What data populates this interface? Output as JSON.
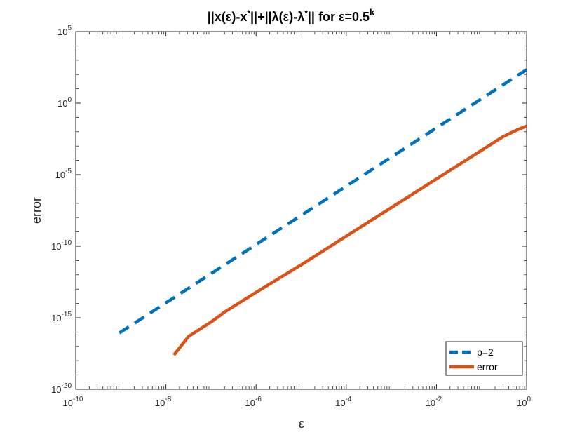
{
  "chart_data": {
    "type": "line",
    "title": "||x(ε)-x*||+||λ(ε)-λ*|| for ε=0.5^k",
    "title_parts": {
      "part1": "||x(ε)-x",
      "sup1": "*",
      "part2": "||+||λ(ε)-λ",
      "sup2": "*",
      "part3": "|| for ε=0.5",
      "sup3": "k"
    },
    "xlabel": "ε",
    "ylabel": "error",
    "x_scale": "log",
    "y_scale": "log",
    "xlim": [
      1e-10,
      1
    ],
    "ylim": [
      1e-20,
      100000.0
    ],
    "x_ticks": [
      {
        "base": "10",
        "exp": "-10",
        "value": 1e-10
      },
      {
        "base": "10",
        "exp": "-8",
        "value": 1e-08
      },
      {
        "base": "10",
        "exp": "-6",
        "value": 1e-06
      },
      {
        "base": "10",
        "exp": "-4",
        "value": 0.0001
      },
      {
        "base": "10",
        "exp": "-2",
        "value": 0.01
      },
      {
        "base": "10",
        "exp": "0",
        "value": 1
      }
    ],
    "y_ticks": [
      {
        "base": "10",
        "exp": "-20",
        "value": 1e-20
      },
      {
        "base": "10",
        "exp": "-15",
        "value": 1e-15
      },
      {
        "base": "10",
        "exp": "-10",
        "value": 1e-10
      },
      {
        "base": "10",
        "exp": "-5",
        "value": 1e-05
      },
      {
        "base": "10",
        "exp": "0",
        "value": 1
      },
      {
        "base": "10",
        "exp": "5",
        "value": 100000.0
      }
    ],
    "legend_position": "bottom-right",
    "series": [
      {
        "name": "p=2",
        "color": "#0072BD",
        "style": "dashed",
        "x": [
          9.3e-10,
          1
        ],
        "y": [
          8.7e-17,
          220.0
        ]
      },
      {
        "name": "error",
        "color": "#D95319",
        "style": "solid",
        "x": [
          1.5e-08,
          3.2e-08,
          1e-07,
          2e-07,
          1e-06,
          1e-05,
          0.0001,
          0.001,
          0.01,
          0.1,
          0.3,
          0.6,
          1
        ],
        "y": [
          2.5e-18,
          5e-17,
          5e-16,
          2.5e-15,
          6e-14,
          5e-12,
          5e-10,
          5e-08,
          5e-06,
          0.0005,
          0.0045,
          0.013,
          0.025
        ]
      }
    ]
  }
}
